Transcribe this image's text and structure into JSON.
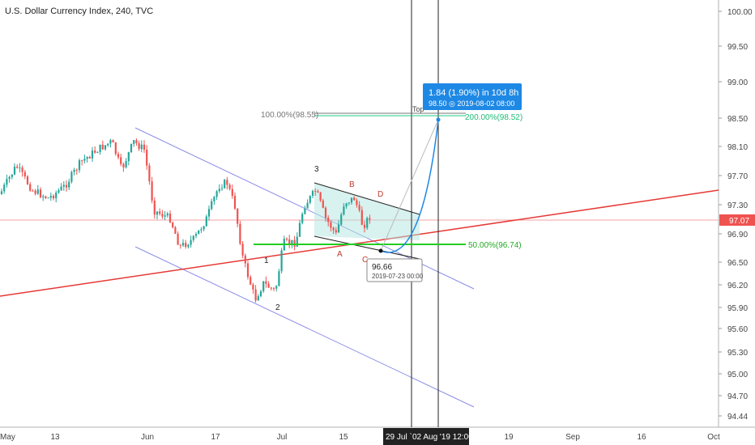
{
  "chart_data": {
    "type": "candlestick",
    "title": "U.S. Dollar Currency Index, 240, TVC",
    "y_ticks": [
      "100.00",
      "99.50",
      "99.00",
      "98.50",
      "98.10",
      "97.70",
      "97.30",
      "96.90",
      "96.50",
      "96.20",
      "95.90",
      "95.60",
      "95.30",
      "95.00",
      "94.70",
      "94.44"
    ],
    "ylim": [
      94.3,
      100.15
    ],
    "x_ticks": [
      "May",
      "13",
      "Jun",
      "17",
      "Jul",
      "15",
      "19",
      "Sep",
      "16",
      "Oct"
    ],
    "x_highlight": {
      "left": "29 Jul `",
      "right": "02 Aug '19   12:00"
    },
    "last_price": "97.07",
    "wave_labels": [
      "1",
      "2",
      "3",
      "A",
      "B",
      "C",
      "D"
    ],
    "fib_levels": [
      {
        "label": "100.00%(98.55)",
        "value": 98.55
      },
      {
        "label": "200.00%(98.52)",
        "value": 98.52
      },
      {
        "label": "50.00%(96.74)",
        "value": 96.74
      }
    ],
    "annotation_top_label": "Top",
    "projection_box": {
      "line1": "1.84 (1.90%) in 10d 8h",
      "line2": "98.50 ◎ 2019-08-02  08:00"
    },
    "low_point": {
      "value": "96.66",
      "date": "2019-07-23 00:00"
    },
    "colors": {
      "up": "#26a69a",
      "down": "#ef5350",
      "channel": "#8c8ce8",
      "trend": "#e53935",
      "fib_green": "#22cc22",
      "callout_bg": "#1e88e5"
    }
  }
}
